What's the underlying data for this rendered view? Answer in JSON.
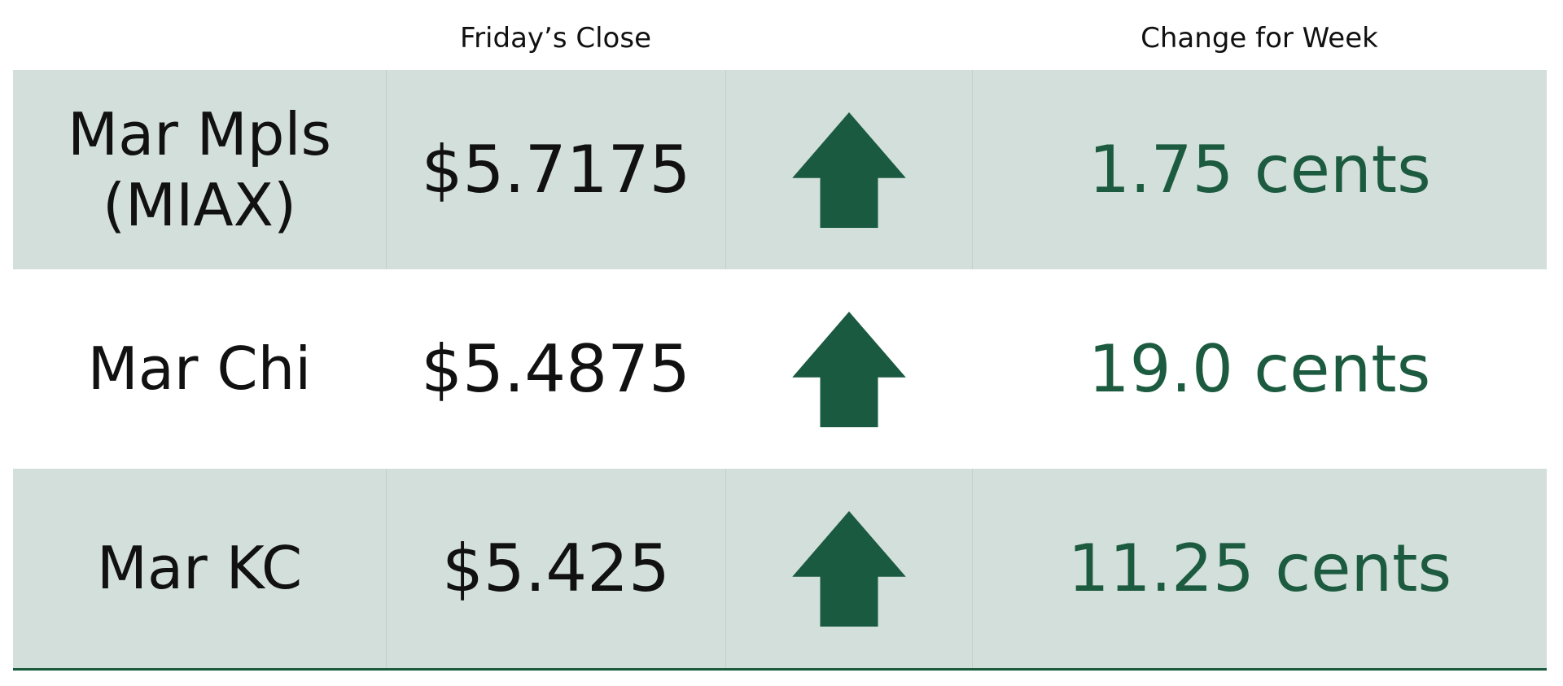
{
  "header": {
    "close": "Friday’s Close",
    "change": "Change for Week"
  },
  "rows": [
    {
      "name": "Mar Mpls (MIAX)",
      "close": "$5.7175",
      "change": "1.75 cents"
    },
    {
      "name": "Mar Chi",
      "close": "$5.4875",
      "change": "19.0 cents"
    },
    {
      "name": "Mar KC",
      "close": "$5.425",
      "change": "11.25 cents"
    }
  ]
}
